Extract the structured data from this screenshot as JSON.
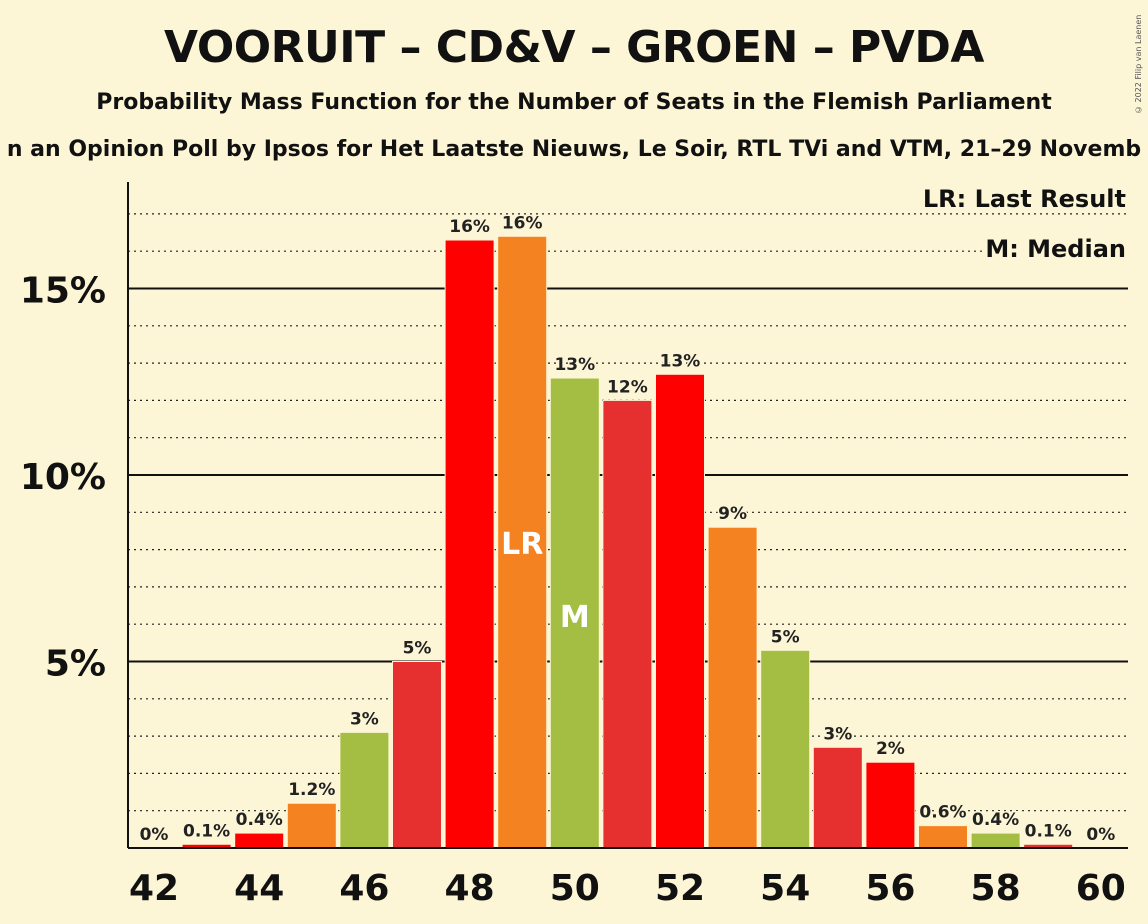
{
  "title": "VOORUIT – CD&V – GROEN – PVDA",
  "subtitle": "Probability Mass Function for the Number of Seats in the Flemish Parliament",
  "subsubtitle": "n an Opinion Poll by Ipsos for Het Laatste Nieuws, Le Soir, RTL TVi and VTM, 21–29 Novemb",
  "copyright": "© 2022 Filip van Laenen",
  "legend": {
    "last_result": "LR: Last Result",
    "median": "M: Median"
  },
  "chart_data": {
    "type": "bar",
    "x": [
      42,
      43,
      44,
      45,
      46,
      47,
      48,
      49,
      50,
      51,
      52,
      53,
      54,
      55,
      56,
      57,
      58,
      59,
      60
    ],
    "values": [
      0,
      0.1,
      0.4,
      1.2,
      3.1,
      5.0,
      16.3,
      16.4,
      12.6,
      12.0,
      12.7,
      8.6,
      5.3,
      2.7,
      2.3,
      0.6,
      0.4,
      0.1,
      0
    ],
    "labels": [
      "0%",
      "0.1%",
      "0.4%",
      "1.2%",
      "3%",
      "5%",
      "16%",
      "16%",
      "13%",
      "12%",
      "13%",
      "9%",
      "5%",
      "3%",
      "2%",
      "0.6%",
      "0.4%",
      "0.1%",
      "0%"
    ],
    "colors": [
      "#e5302f",
      "#ff0000",
      "#ff0000",
      "#f58220",
      "#a3be42",
      "#e5302f",
      "#ff0000",
      "#f58220",
      "#a3be42",
      "#e5302f",
      "#ff0000",
      "#f58220",
      "#a3be42",
      "#e5302f",
      "#ff0000",
      "#f58220",
      "#a3be42",
      "#e5302f",
      "#ff0000"
    ],
    "x_tick_labels": [
      "42",
      "44",
      "46",
      "48",
      "50",
      "52",
      "54",
      "56",
      "58",
      "60"
    ],
    "y_ticks": [
      {
        "value": 5,
        "label": "5%"
      },
      {
        "value": 10,
        "label": "10%"
      },
      {
        "value": 15,
        "label": "15%"
      }
    ],
    "ylim": [
      0,
      17.5
    ],
    "minor_grid_step": 1,
    "last_result": {
      "x": 49,
      "marker": "LR"
    },
    "median": {
      "x": 50,
      "marker": "M"
    }
  }
}
